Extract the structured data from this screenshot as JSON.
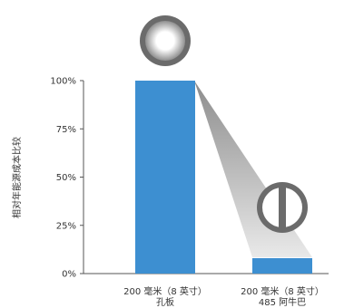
{
  "chart_data": {
    "type": "bar",
    "ylabel": "相对年能源成本比较",
    "ylim": [
      0,
      100
    ],
    "yticks": [
      0,
      25,
      50,
      75,
      100
    ],
    "ytick_labels": [
      "0%",
      "25%",
      "50%",
      "75%",
      "100%"
    ],
    "categories": [
      {
        "line1": "200 毫米（8 英寸）",
        "line2": "孔板"
      },
      {
        "line1": "200 毫米（8 英寸）",
        "line2": "485 阿牛巴"
      }
    ],
    "values": [
      100,
      8
    ],
    "bar_color": "#3d8fd1",
    "grid": false,
    "annotations": [
      {
        "name": "orifice-plate-icon",
        "category": 0
      },
      {
        "name": "annubar-icon",
        "category": 1
      }
    ]
  }
}
